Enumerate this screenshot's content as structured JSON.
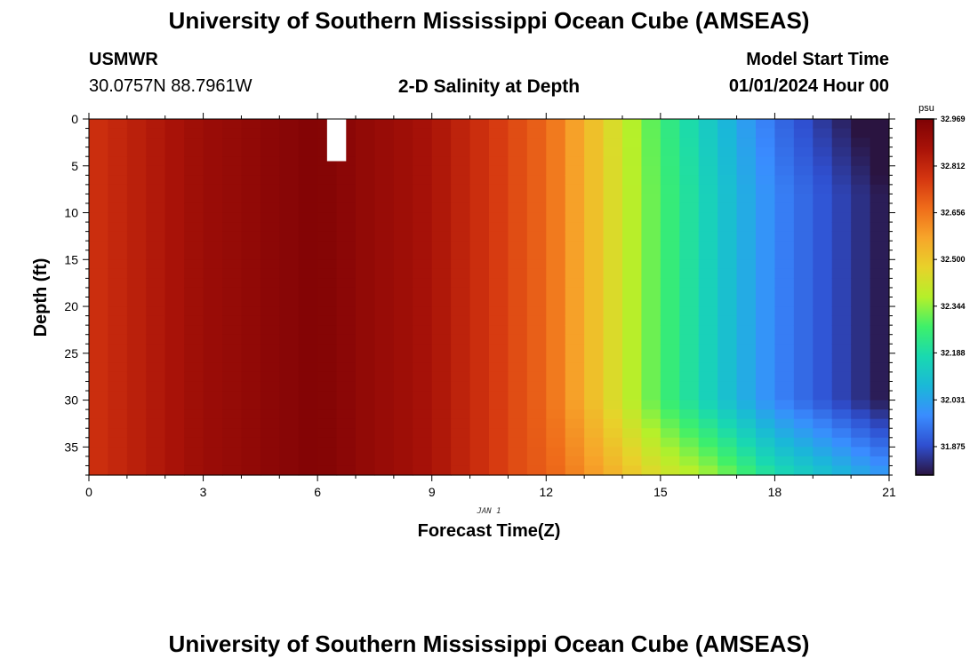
{
  "page": {
    "title_top": "University of Southern Mississippi Ocean Cube (AMSEAS)",
    "title_bottom": "University of Southern Mississippi Ocean Cube (AMSEAS)",
    "station": "USMWR",
    "coords": "30.0757N  88.7961W",
    "subtitle": "2-D Salinity at Depth",
    "model_start_label": "Model Start Time",
    "model_start_value": "01/01/2024 Hour 00"
  },
  "colors": {
    "stops": [
      "#2a1440",
      "#2f4fd0",
      "#3a8cff",
      "#1ab8d8",
      "#19d9b0",
      "#3ef06a",
      "#b5f02a",
      "#e8d22a",
      "#f7a52a",
      "#ef6c1a",
      "#d43510",
      "#a81208",
      "#7e0205"
    ]
  },
  "chart_data": {
    "type": "heatmap",
    "title": "2-D Salinity at Depth",
    "xlabel": "Forecast Time(Z)",
    "ylabel": "Depth (ft)",
    "date_label": "JAN 1",
    "x_ticks": [
      "0",
      "3",
      "6",
      "9",
      "12",
      "15",
      "18",
      "21"
    ],
    "y_ticks": [
      "0",
      "5",
      "10",
      "15",
      "20",
      "25",
      "30",
      "35"
    ],
    "xlim": [
      0,
      21
    ],
    "ylim": [
      0,
      38
    ],
    "colorbar": {
      "unit": "psu",
      "range": [
        31.78,
        32.969
      ],
      "labels": [
        "32.969",
        "32.812",
        "32.656",
        "32.500",
        "32.344",
        "32.188",
        "32.031",
        "31.875"
      ]
    },
    "missing": {
      "x_range": [
        6.25,
        6.75
      ],
      "depth_range": [
        0,
        4.5
      ]
    },
    "approx_surface_salinity": [
      {
        "hour": 0,
        "psu": 32.78
      },
      {
        "hour": 3,
        "psu": 32.9
      },
      {
        "hour": 6,
        "psu": 32.96
      },
      {
        "hour": 9,
        "psu": 32.87
      },
      {
        "hour": 12,
        "psu": 32.68
      },
      {
        "hour": 15,
        "psu": 32.28
      },
      {
        "hour": 18,
        "psu": 31.97
      },
      {
        "hour": 21,
        "psu": 31.78
      }
    ]
  }
}
